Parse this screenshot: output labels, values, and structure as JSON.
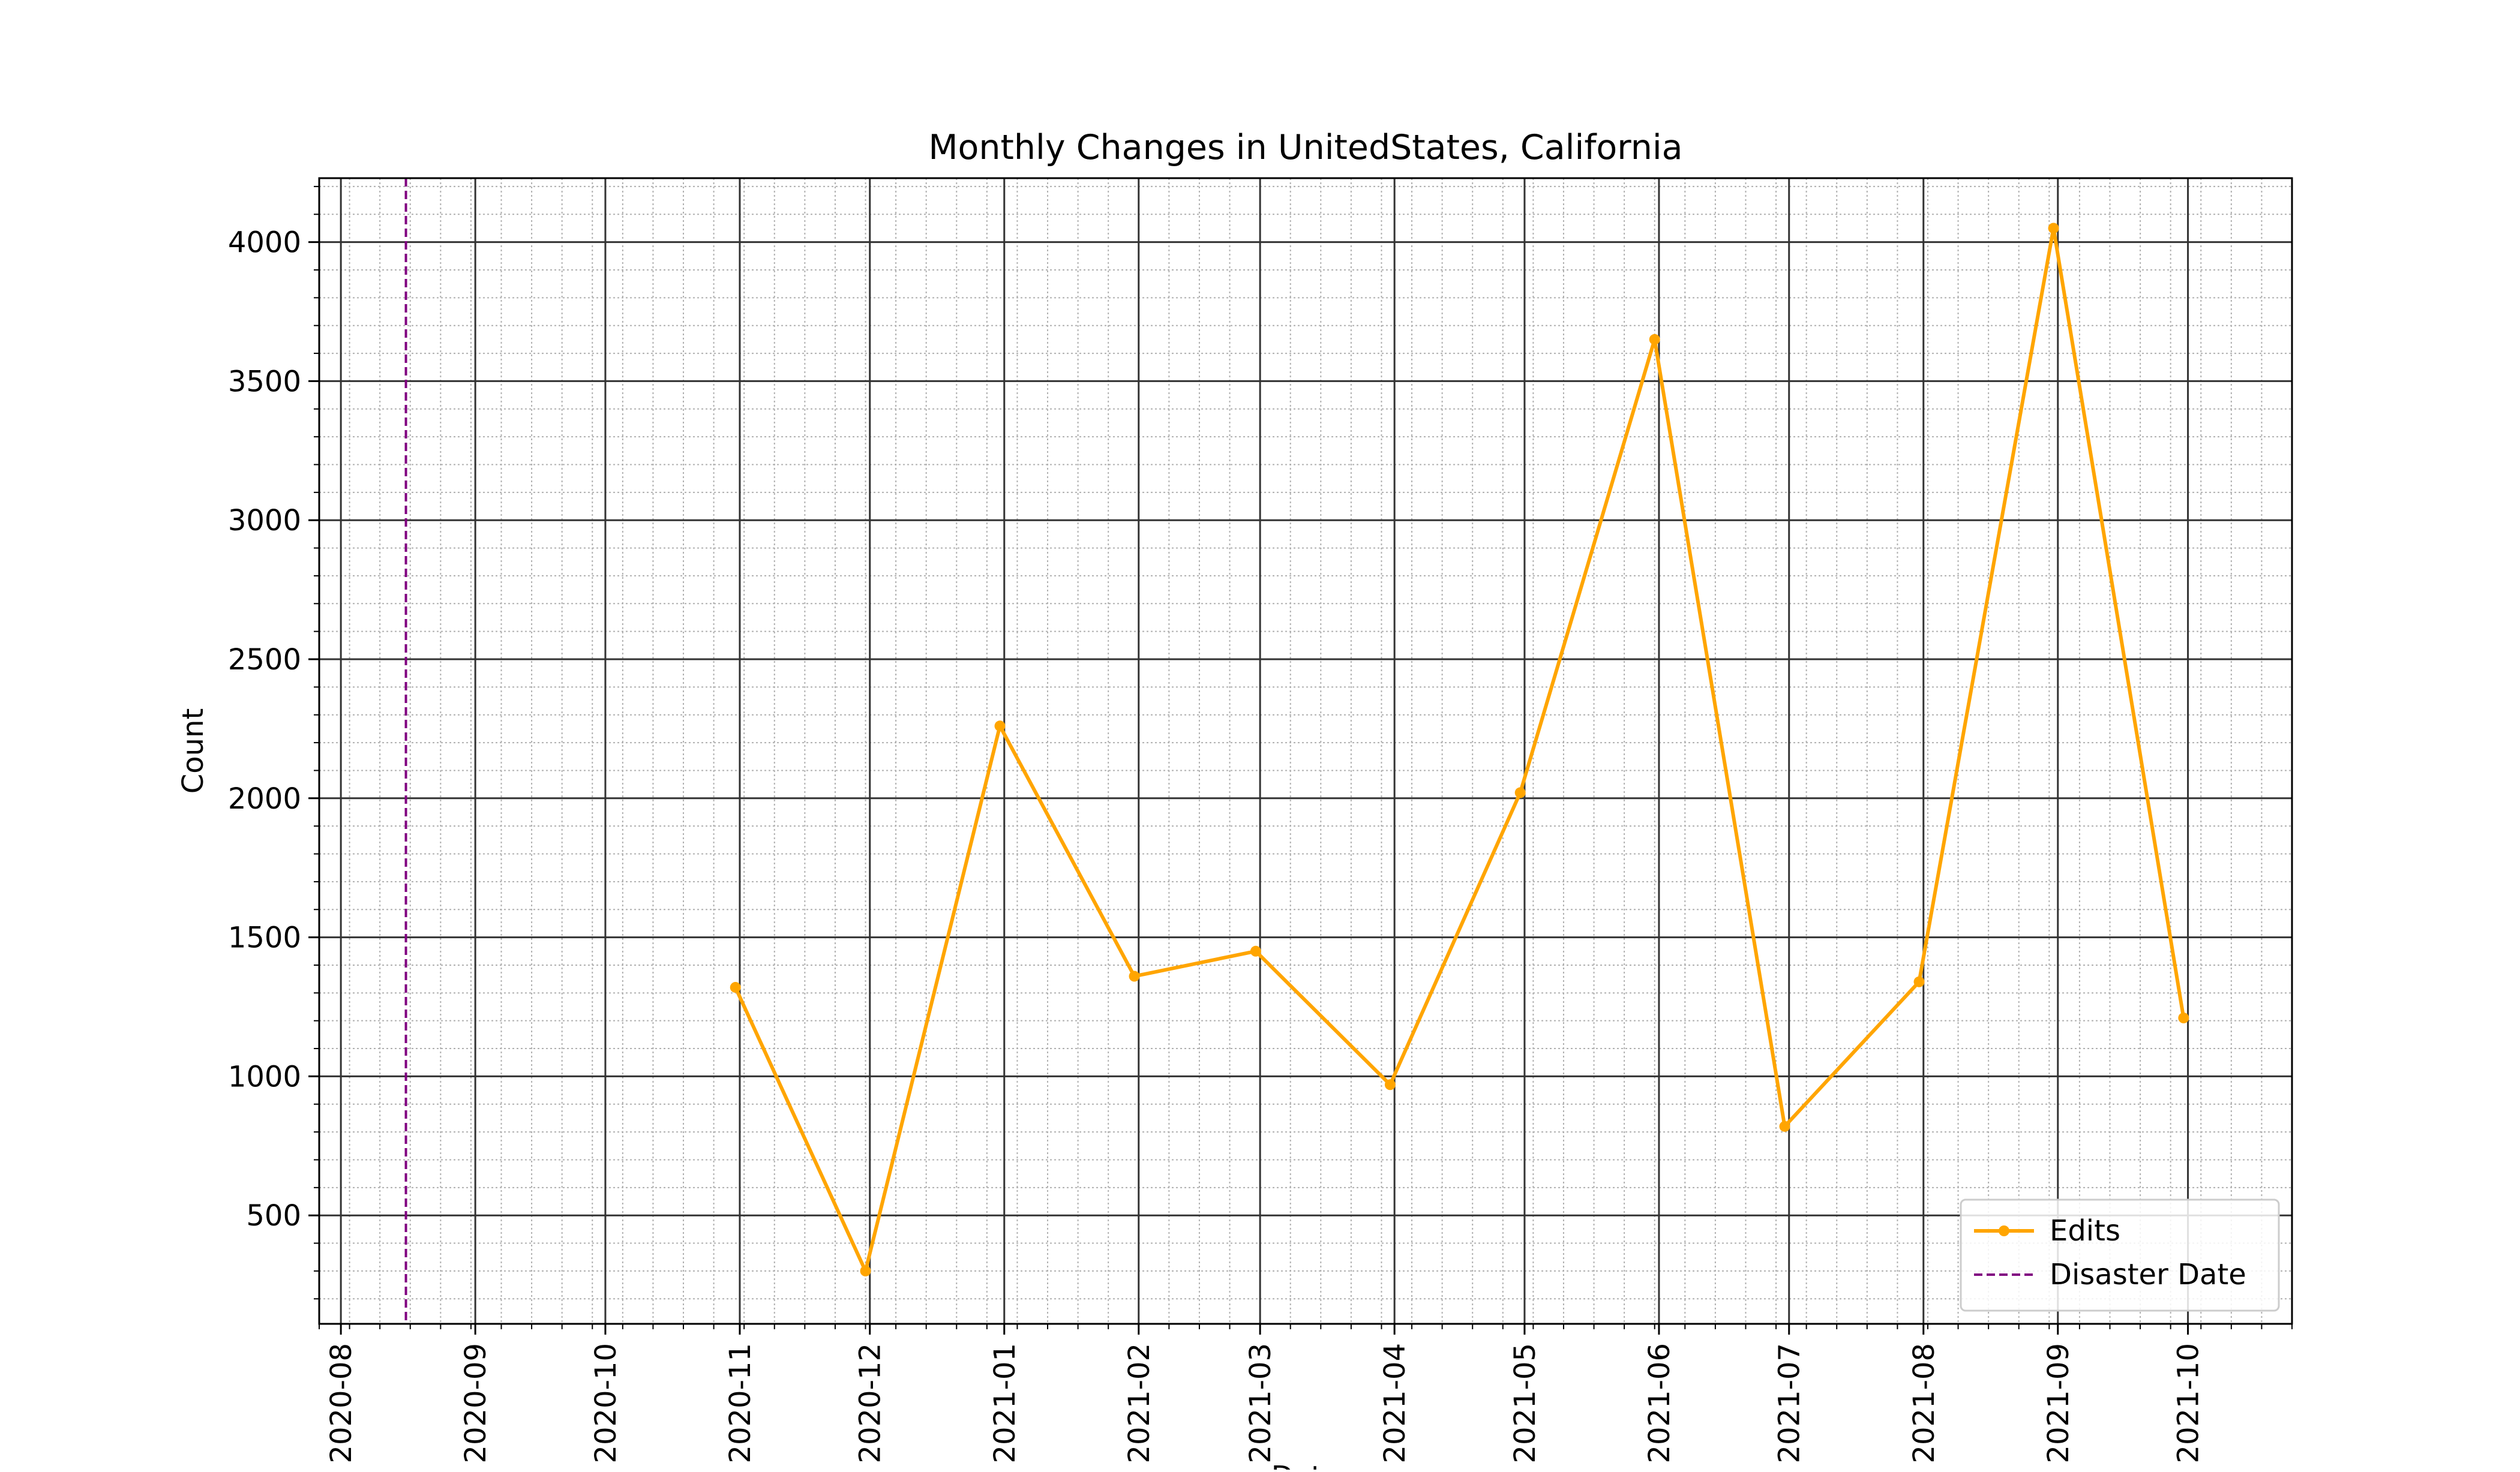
{
  "chart_data": {
    "type": "line",
    "title": "Monthly Changes in UnitedStates, California",
    "xlabel": "Date",
    "ylabel": "Count",
    "x_tick_labels": [
      "2020-08",
      "2020-09",
      "2020-10",
      "2020-11",
      "2020-12",
      "2021-01",
      "2021-02",
      "2021-03",
      "2021-04",
      "2021-05",
      "2021-06",
      "2021-07",
      "2021-08",
      "2021-09",
      "2021-10"
    ],
    "xlim": [
      "2020-07-27",
      "2021-10-25"
    ],
    "y_ticks": [
      500,
      1000,
      1500,
      2000,
      2500,
      3000,
      3500,
      4000
    ],
    "ylim": [
      110,
      4230
    ],
    "grid": true,
    "legend_position": "lower-right",
    "series": [
      {
        "name": "Edits",
        "color": "#FFA500",
        "marker": "circle",
        "points": [
          {
            "x": "2020-10-31",
            "y": 1320
          },
          {
            "x": "2020-11-30",
            "y": 300
          },
          {
            "x": "2020-12-31",
            "y": 2260
          },
          {
            "x": "2021-01-31",
            "y": 1360
          },
          {
            "x": "2021-02-28",
            "y": 1450
          },
          {
            "x": "2021-03-31",
            "y": 970
          },
          {
            "x": "2021-04-30",
            "y": 2020
          },
          {
            "x": "2021-05-31",
            "y": 3650
          },
          {
            "x": "2021-06-30",
            "y": 820
          },
          {
            "x": "2021-07-31",
            "y": 1340
          },
          {
            "x": "2021-08-31",
            "y": 4050
          },
          {
            "x": "2021-09-30",
            "y": 1210
          }
        ]
      }
    ],
    "reference_lines": [
      {
        "name": "Disaster Date",
        "x": "2020-08-16",
        "color": "#800080",
        "style": "dashed"
      }
    ]
  }
}
